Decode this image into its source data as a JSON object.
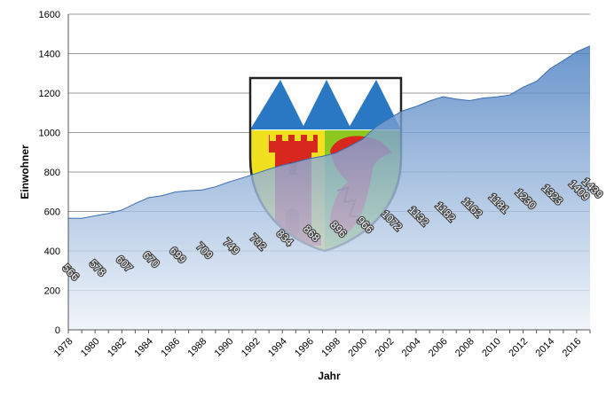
{
  "chart_data": {
    "type": "area",
    "title": "",
    "xlabel": "Jahr",
    "ylabel": "Einwohner",
    "ylim": [
      0,
      1600
    ],
    "xlim": [
      1978,
      2017
    ],
    "yticks": [
      0,
      200,
      400,
      600,
      800,
      1000,
      1200,
      1400,
      1600
    ],
    "xticks": [
      1978,
      1980,
      1982,
      1984,
      1986,
      1988,
      1990,
      1992,
      1994,
      1996,
      1998,
      2000,
      2002,
      2004,
      2006,
      2008,
      2010,
      2012,
      2014,
      2016
    ],
    "grid": "horizontal",
    "series": [
      {
        "x": [
          1978,
          1979,
          1980,
          1981,
          1982,
          1983,
          1984,
          1985,
          1986,
          1987,
          1988,
          1989,
          1990,
          1991,
          1992,
          1993,
          1994,
          1995,
          1996,
          1997,
          1998,
          1999,
          2000,
          2001,
          2002,
          2003,
          2004,
          2005,
          2006,
          2007,
          2008,
          2009,
          2010,
          2011,
          2012,
          2013,
          2014,
          2015,
          2016,
          2017
        ],
        "values": [
          566,
          565,
          578,
          590,
          607,
          640,
          670,
          680,
          699,
          705,
          709,
          725,
          749,
          770,
          792,
          815,
          834,
          850,
          868,
          880,
          896,
          930,
          966,
          1030,
          1072,
          1110,
          1132,
          1160,
          1182,
          1170,
          1162,
          1175,
          1181,
          1190,
          1230,
          1260,
          1323,
          1365,
          1409,
          1439
        ]
      }
    ],
    "data_labels": [
      {
        "x": 1978,
        "text": "566"
      },
      {
        "x": 1980,
        "text": "578"
      },
      {
        "x": 1982,
        "text": "607"
      },
      {
        "x": 1984,
        "text": "670"
      },
      {
        "x": 1986,
        "text": "699"
      },
      {
        "x": 1988,
        "text": "709"
      },
      {
        "x": 1990,
        "text": "749"
      },
      {
        "x": 1992,
        "text": "792"
      },
      {
        "x": 1994,
        "text": "834"
      },
      {
        "x": 1996,
        "text": "868"
      },
      {
        "x": 1998,
        "text": "896"
      },
      {
        "x": 2000,
        "text": "966"
      },
      {
        "x": 2002,
        "text": "1072"
      },
      {
        "x": 2004,
        "text": "1132"
      },
      {
        "x": 2006,
        "text": "1182"
      },
      {
        "x": 2008,
        "text": "1162"
      },
      {
        "x": 2010,
        "text": "1181"
      },
      {
        "x": 2012,
        "text": "1230"
      },
      {
        "x": 2014,
        "text": "1323"
      },
      {
        "x": 2016,
        "text": "1409"
      },
      {
        "x": 2017,
        "text": "1439"
      }
    ],
    "colors": {
      "area_top": "#4a7fc0",
      "area_bottom": "#eef3f9",
      "gridline": "#9a9a9a",
      "emblem_blue": "#2a78c4",
      "emblem_yellow": "#f0e020",
      "emblem_green": "#8cc820",
      "emblem_red": "#d8271e"
    },
    "emblem": "coat-of-arms"
  }
}
